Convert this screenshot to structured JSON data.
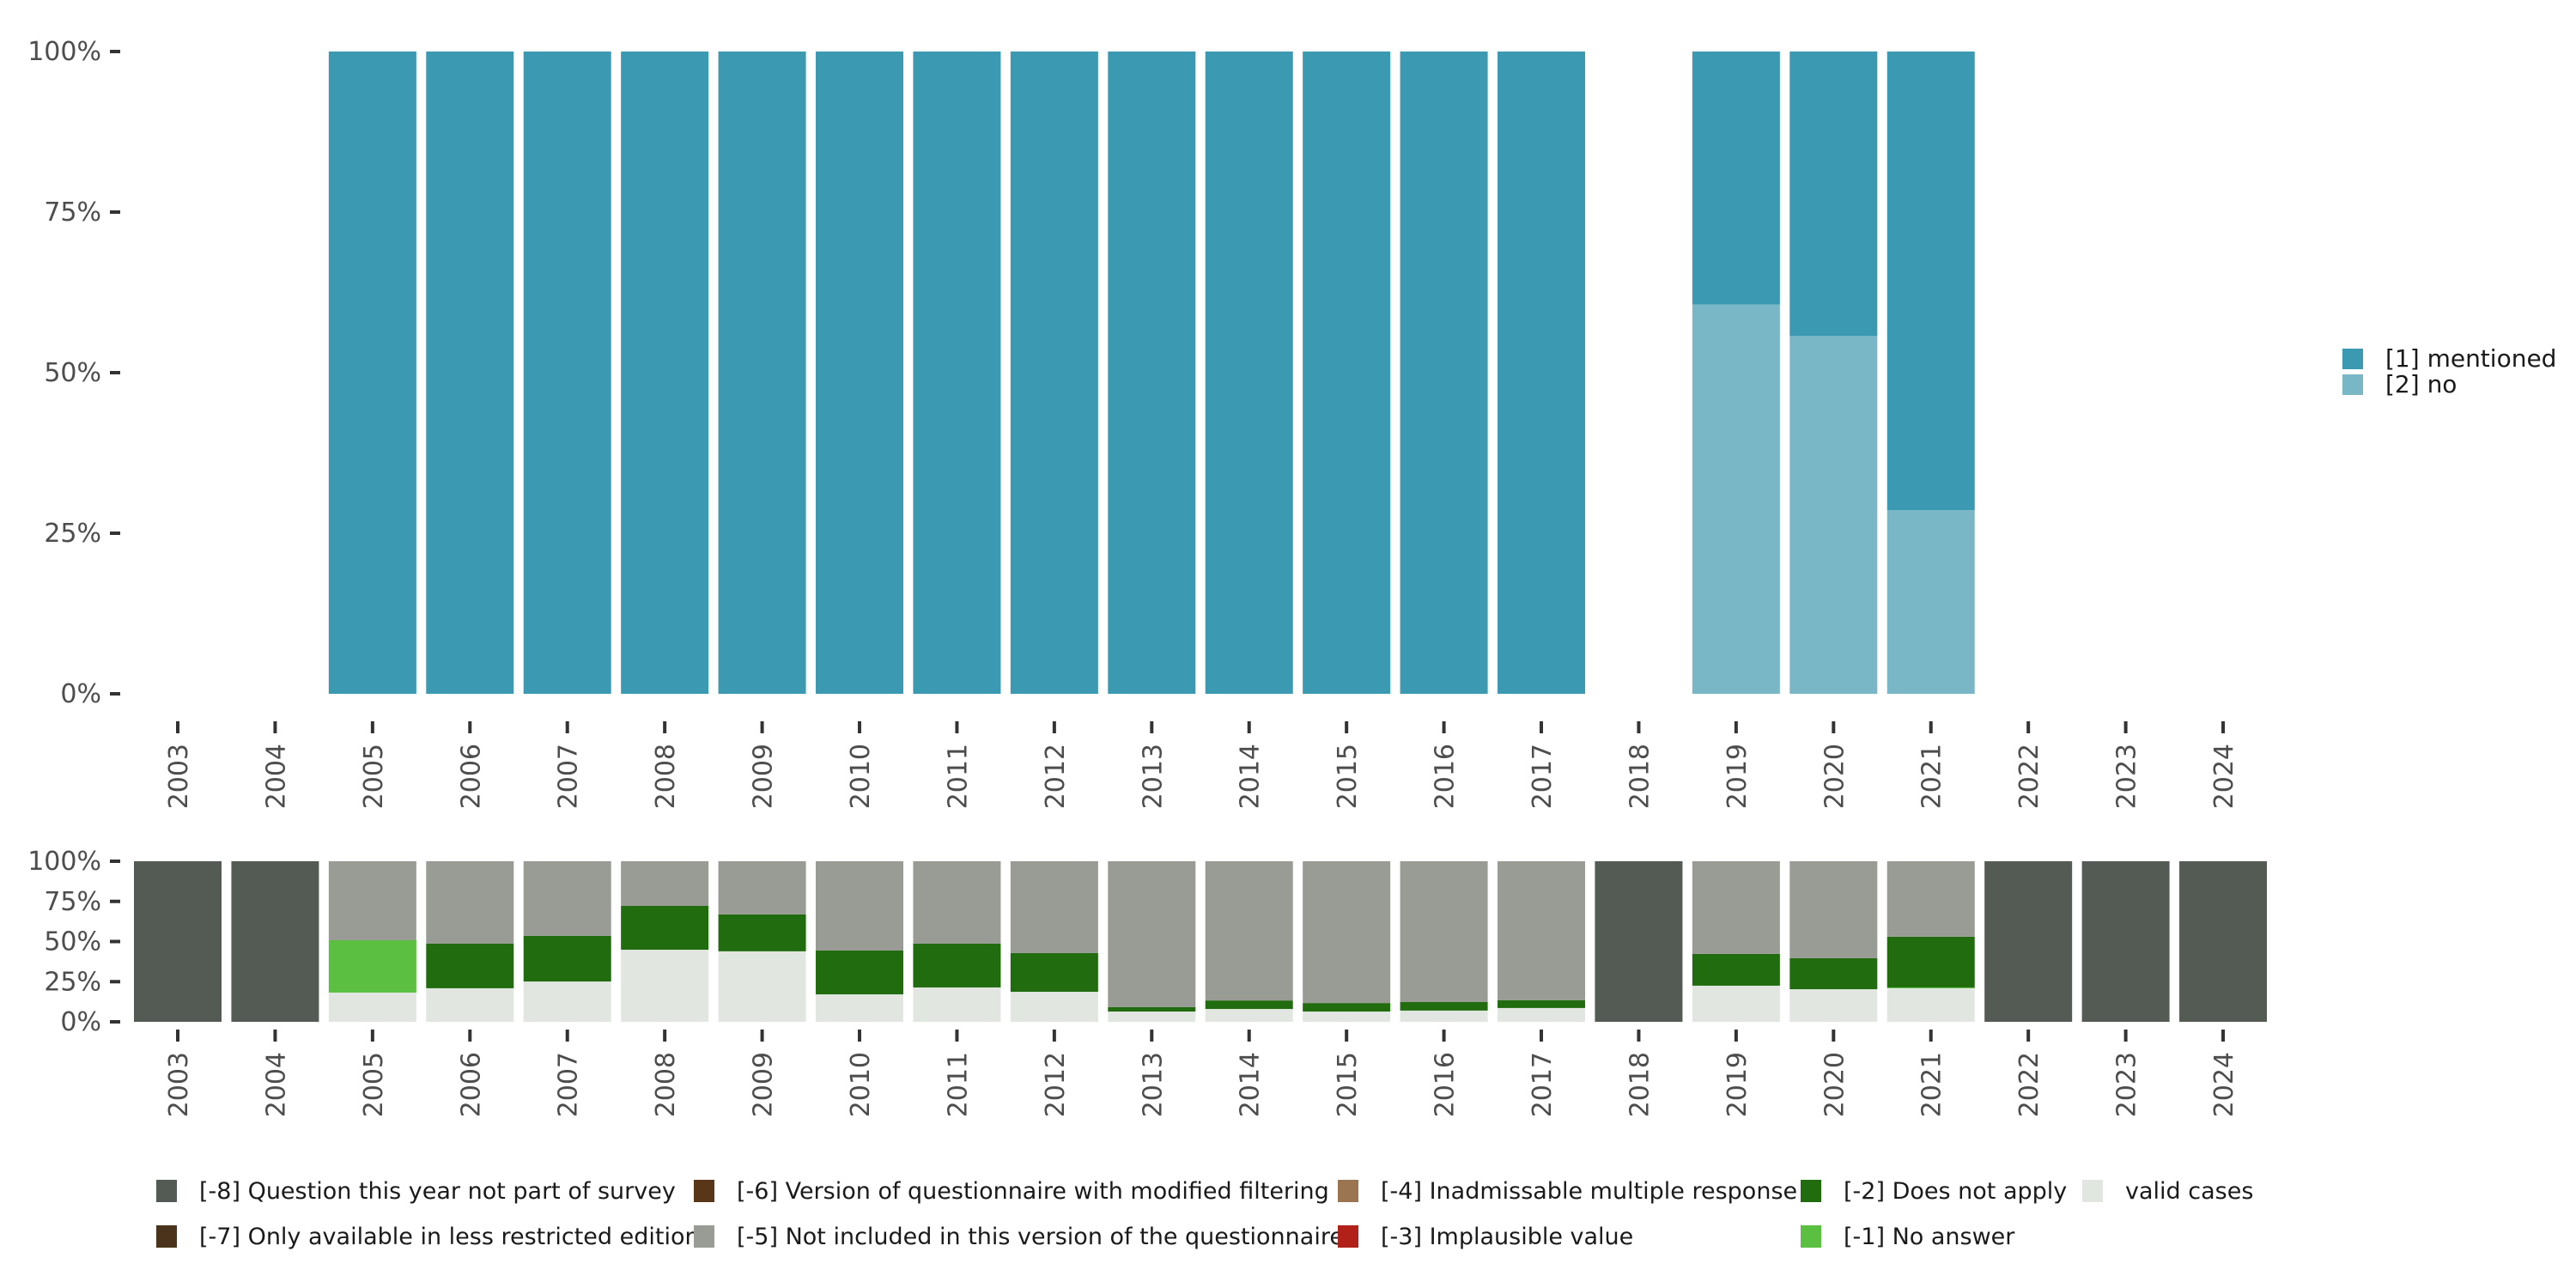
{
  "chart_data": [
    {
      "type": "bar",
      "stacked": true,
      "title": "",
      "xlabel": "",
      "ylabel": "",
      "ylim": [
        0,
        100
      ],
      "yticks": [
        "0%",
        "25%",
        "50%",
        "75%",
        "100%"
      ],
      "categories": [
        "2003",
        "2004",
        "2005",
        "2006",
        "2007",
        "2008",
        "2009",
        "2010",
        "2011",
        "2012",
        "2013",
        "2014",
        "2015",
        "2016",
        "2017",
        "2018",
        "2019",
        "2020",
        "2021",
        "2022",
        "2023",
        "2024"
      ],
      "series": [
        {
          "name": "[2] no",
          "color": "#7AB7C6",
          "values": [
            null,
            null,
            0,
            0,
            0,
            0,
            0,
            0,
            0,
            0,
            0,
            0,
            0,
            0,
            0,
            null,
            60.6,
            55.7,
            28.6,
            null,
            null,
            null
          ]
        },
        {
          "name": "[1] mentioned",
          "color": "#3C99B2",
          "values": [
            null,
            null,
            100,
            100,
            100,
            100,
            100,
            100,
            100,
            100,
            100,
            100,
            100,
            100,
            100,
            null,
            39.4,
            44.3,
            71.4,
            null,
            null,
            null
          ]
        }
      ],
      "legend": {
        "position": "right",
        "items": [
          {
            "label": "[1] mentioned",
            "color": "#3C99B2"
          },
          {
            "label": "[2] no",
            "color": "#7AB7C6"
          }
        ]
      },
      "grid": false
    },
    {
      "type": "bar",
      "stacked": true,
      "title": "",
      "xlabel": "",
      "ylabel": "",
      "ylim": [
        0,
        100
      ],
      "yticks": [
        "0%",
        "25%",
        "50%",
        "75%",
        "100%"
      ],
      "categories": [
        "2003",
        "2004",
        "2005",
        "2006",
        "2007",
        "2008",
        "2009",
        "2010",
        "2011",
        "2012",
        "2013",
        "2014",
        "2015",
        "2016",
        "2017",
        "2018",
        "2019",
        "2020",
        "2021",
        "2022",
        "2023",
        "2024"
      ],
      "series": [
        {
          "name": "valid cases",
          "color": "#E1E6E1",
          "values": [
            0,
            0,
            18.2,
            20.9,
            25.1,
            44.9,
            43.9,
            17.1,
            21.4,
            18.7,
            6.4,
            8.0,
            6.4,
            7.0,
            8.6,
            0,
            22.5,
            20.3,
            20.9,
            0,
            0,
            0
          ]
        },
        {
          "name": "[-1] No answer",
          "color": "#5BC042",
          "values": [
            0,
            0,
            32.6,
            0,
            0,
            0,
            0,
            0,
            0,
            0,
            0,
            0,
            0,
            0,
            0,
            0,
            0,
            0,
            0.5,
            0,
            0,
            0
          ]
        },
        {
          "name": "[-2] Does not apply",
          "color": "#226C10",
          "values": [
            0,
            0,
            0,
            27.8,
            28.4,
            27.3,
            23.0,
            27.3,
            27.3,
            24.1,
            2.7,
            5.3,
            5.3,
            5.3,
            4.8,
            0,
            19.8,
            19.3,
            31.6,
            0,
            0,
            0
          ]
        },
        {
          "name": "[-3] Implausible value",
          "color": "#B2201A",
          "values": [
            0,
            0,
            0,
            0,
            0,
            0,
            0,
            0,
            0,
            0,
            0,
            0,
            0,
            0,
            0,
            0,
            0,
            0,
            0,
            0,
            0,
            0
          ]
        },
        {
          "name": "[-4] Inadmissable multiple response",
          "color": "#9B7452",
          "values": [
            0,
            0,
            0,
            0,
            0,
            0,
            0,
            0,
            0,
            0,
            0,
            0,
            0,
            0,
            0,
            0,
            0,
            0,
            0,
            0,
            0,
            0
          ]
        },
        {
          "name": "[-5] Not included in this version of the questionnaire",
          "color": "#989C94",
          "values": [
            0,
            0,
            49.2,
            51.3,
            46.5,
            27.8,
            33.1,
            55.6,
            51.3,
            57.2,
            90.9,
            86.7,
            88.3,
            87.7,
            86.6,
            0,
            57.7,
            60.4,
            47.0,
            0,
            0,
            0
          ]
        },
        {
          "name": "[-6] Version of questionnaire with modified filtering",
          "color": "#5A3618",
          "values": [
            0,
            0,
            0,
            0,
            0,
            0,
            0,
            0,
            0,
            0,
            0,
            0,
            0,
            0,
            0,
            0,
            0,
            0,
            0,
            0,
            0,
            0
          ]
        },
        {
          "name": "[-7] Only available in less restricted edition",
          "color": "#4B321A",
          "values": [
            0,
            0,
            0,
            0,
            0,
            0,
            0,
            0,
            0,
            0,
            0,
            0,
            0,
            0,
            0,
            0,
            0,
            0,
            0,
            0,
            0,
            0
          ]
        },
        {
          "name": "[-8] Question this year not part of survey",
          "color": "#545B54",
          "values": [
            100,
            100,
            0,
            0,
            0,
            0,
            0,
            0,
            0,
            0,
            0,
            0,
            0,
            0,
            0,
            100,
            0,
            0,
            0,
            100,
            100,
            100
          ]
        }
      ],
      "legend": {
        "position": "bottom",
        "items": [
          {
            "label": "[-8] Question this year not part of survey",
            "color": "#545B54"
          },
          {
            "label": "[-7] Only available in less restricted edition",
            "color": "#4B321A"
          },
          {
            "label": "[-6] Version of questionnaire with modified filtering",
            "color": "#5A3618"
          },
          {
            "label": "[-5] Not included in this version of the questionnaire",
            "color": "#989C94"
          },
          {
            "label": "[-4] Inadmissable multiple response",
            "color": "#9B7452"
          },
          {
            "label": "[-3] Implausible value",
            "color": "#B2201A"
          },
          {
            "label": "[-2] Does not apply",
            "color": "#226C10"
          },
          {
            "label": "[-1] No answer",
            "color": "#5BC042"
          },
          {
            "label": "valid cases",
            "color": "#E1E6E1"
          }
        ]
      },
      "grid": false
    }
  ]
}
